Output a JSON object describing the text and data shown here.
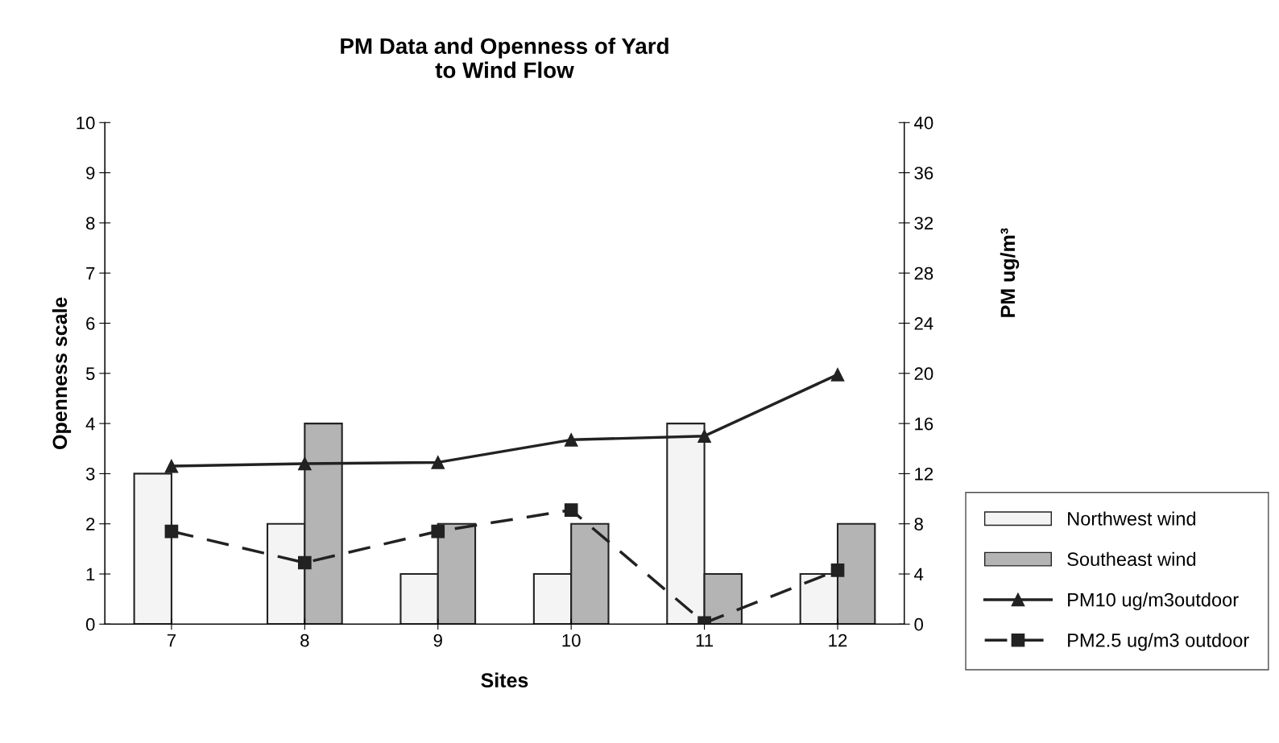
{
  "chart_data": {
    "type": "bar",
    "title": "PM Data and Openness of Yard\nto Wind Flow",
    "xlabel": "Sites",
    "ylabel": "Openness scale",
    "y2label": "PM ug/m³",
    "categories": [
      "7",
      "8",
      "9",
      "10",
      "11",
      "12"
    ],
    "series": [
      {
        "name": "Northwest wind",
        "color": "#f4f4f4",
        "values": [
          3,
          2,
          1,
          1,
          4,
          1
        ]
      },
      {
        "name": "Southeast wind",
        "color": "#b4b4b4",
        "values": [
          null,
          4,
          2,
          2,
          1,
          2
        ]
      },
      {
        "name": "PM10 ug/m3outdoor",
        "type": "line",
        "axis": "y2",
        "color": "#222222",
        "marker": "triangle",
        "line_style": "solid",
        "values": [
          12.6,
          12.8,
          12.9,
          14.7,
          15.0,
          19.9
        ]
      },
      {
        "name": "PM2.5 ug/m3 outdoor",
        "type": "line",
        "axis": "y2",
        "color": "#222222",
        "marker": "square",
        "line_style": "dashed",
        "values": [
          7.4,
          4.9,
          7.4,
          9.1,
          0.1,
          4.3
        ]
      }
    ],
    "ylim": [
      0,
      10
    ],
    "yticks": [
      0,
      1,
      2,
      3,
      4,
      5,
      6,
      7,
      8,
      9,
      10
    ],
    "y2lim": [
      0,
      40
    ],
    "y2ticks": [
      0,
      4,
      8,
      12,
      16,
      20,
      24,
      28,
      32,
      36,
      40
    ],
    "grid": false,
    "legend": "right"
  }
}
